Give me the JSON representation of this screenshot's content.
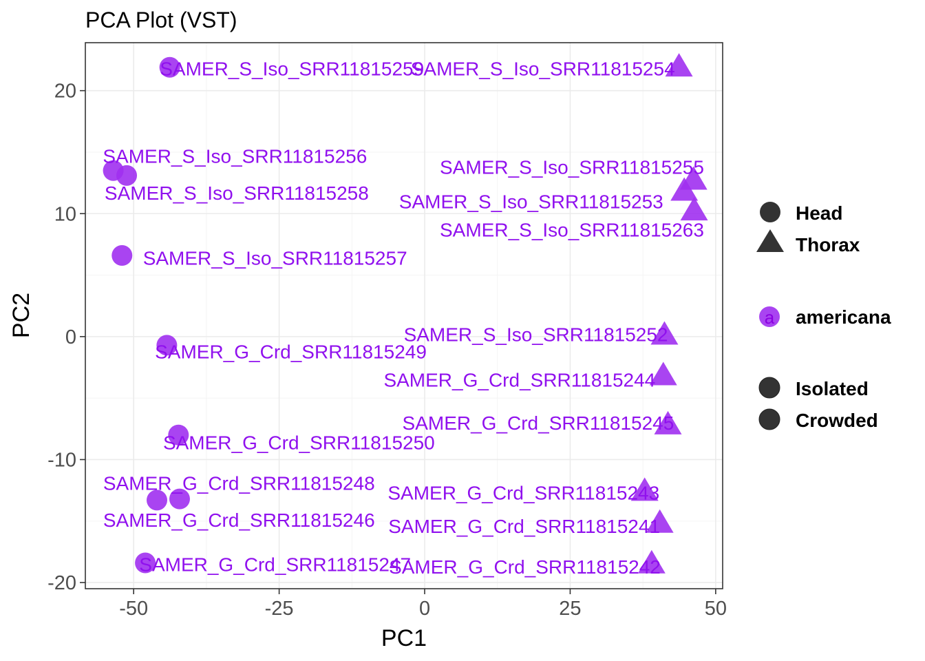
{
  "chart_data": {
    "type": "scatter",
    "title": "PCA Plot (VST)",
    "xlabel": "PC1",
    "ylabel": "PC2",
    "xlim": [
      -58.3,
      51.2
    ],
    "ylim": [
      -20.5,
      23.9
    ],
    "xticks": [
      -50,
      -25,
      0,
      25,
      50
    ],
    "yticks": [
      -20,
      -10,
      0,
      10,
      20
    ],
    "xtick_labels": [
      "-50",
      "-25",
      "0",
      "25",
      "50"
    ],
    "ytick_labels": [
      "-20",
      "-10",
      "0",
      "10",
      "20"
    ],
    "grid": true,
    "point_color": "#a030f0",
    "label_color": "#9010ee",
    "points": [
      {
        "label": "SAMER_S_Iso_SRR11815259",
        "x": -43.8,
        "y": 21.9,
        "shape": "circle",
        "lx": -22.8,
        "ly": 21.8
      },
      {
        "label": "SAMER_S_Iso_SRR11815254",
        "x": 43.7,
        "y": 22.1,
        "shape": "triangle",
        "lx": 20.3,
        "ly": 21.8
      },
      {
        "label": "SAMER_S_Iso_SRR11815256",
        "x": -53.5,
        "y": 13.5,
        "shape": "circle",
        "lx": -32.6,
        "ly": 14.7
      },
      {
        "label": "SAMER_S_Iso_SRR11815258",
        "x": -51.2,
        "y": 13.1,
        "shape": "circle",
        "lx": -32.3,
        "ly": 11.7
      },
      {
        "label": "SAMER_S_Iso_SRR11815257",
        "x": -52.0,
        "y": 6.6,
        "shape": "circle",
        "lx": -25.7,
        "ly": 6.4
      },
      {
        "label": "SAMER_S_Iso_SRR11815255",
        "x": 46.2,
        "y": 12.9,
        "shape": "triangle",
        "lx": 25.3,
        "ly": 13.8
      },
      {
        "label": "SAMER_S_Iso_SRR11815253",
        "x": 44.6,
        "y": 12.0,
        "shape": "triangle",
        "lx": 18.3,
        "ly": 11.0
      },
      {
        "label": "SAMER_S_Iso_SRR11815263",
        "x": 46.3,
        "y": 10.4,
        "shape": "triangle",
        "lx": 25.3,
        "ly": 8.7
      },
      {
        "label": "SAMER_S_Iso_SRR11815252",
        "x": 41.2,
        "y": 0.3,
        "shape": "triangle",
        "lx": 19.1,
        "ly": 0.2
      },
      {
        "label": "SAMER_G_Crd_SRR11815249",
        "x": -44.3,
        "y": -0.7,
        "shape": "circle",
        "lx": -23.0,
        "ly": -1.2
      },
      {
        "label": "SAMER_G_Crd_SRR11815244",
        "x": 41.0,
        "y": -3.0,
        "shape": "triangle",
        "lx": 16.3,
        "ly": -3.5
      },
      {
        "label": "SAMER_G_Crd_SRR11815245",
        "x": 41.8,
        "y": -7.0,
        "shape": "triangle",
        "lx": 19.5,
        "ly": -7.0
      },
      {
        "label": "SAMER_G_Crd_SRR11815250",
        "x": -42.3,
        "y": -8.0,
        "shape": "circle",
        "lx": -21.6,
        "ly": -8.6
      },
      {
        "label": "SAMER_G_Crd_SRR11815248",
        "x": -42.1,
        "y": -13.2,
        "shape": "circle",
        "lx": -31.9,
        "ly": -11.9
      },
      {
        "label": "SAMER_G_Crd_SRR11815246",
        "x": -46.0,
        "y": -13.3,
        "shape": "circle",
        "lx": -31.9,
        "ly": -14.9
      },
      {
        "label": "SAMER_G_Crd_SRR11815243",
        "x": 37.8,
        "y": -12.4,
        "shape": "triangle",
        "lx": 17.0,
        "ly": -12.7
      },
      {
        "label": "SAMER_G_Crd_SRR11815241",
        "x": 40.4,
        "y": -15.0,
        "shape": "triangle",
        "lx": 17.1,
        "ly": -15.4
      },
      {
        "label": "SAMER_G_Crd_SRR11815247",
        "x": -48.0,
        "y": -18.4,
        "shape": "circle",
        "lx": -25.7,
        "ly": -18.5
      },
      {
        "label": "SAMER_G_Crd_SRR11815242",
        "x": 39.0,
        "y": -18.3,
        "shape": "triangle",
        "lx": 17.2,
        "ly": -18.7
      }
    ],
    "legend": {
      "placement": "right",
      "shape": [
        {
          "label": "Head",
          "shape": "circle"
        },
        {
          "label": "Thorax",
          "shape": "triangle"
        }
      ],
      "color": [
        {
          "label": "americana",
          "glyph": "a"
        }
      ],
      "condition": [
        {
          "label": "Isolated"
        },
        {
          "label": "Crowded"
        }
      ]
    }
  }
}
